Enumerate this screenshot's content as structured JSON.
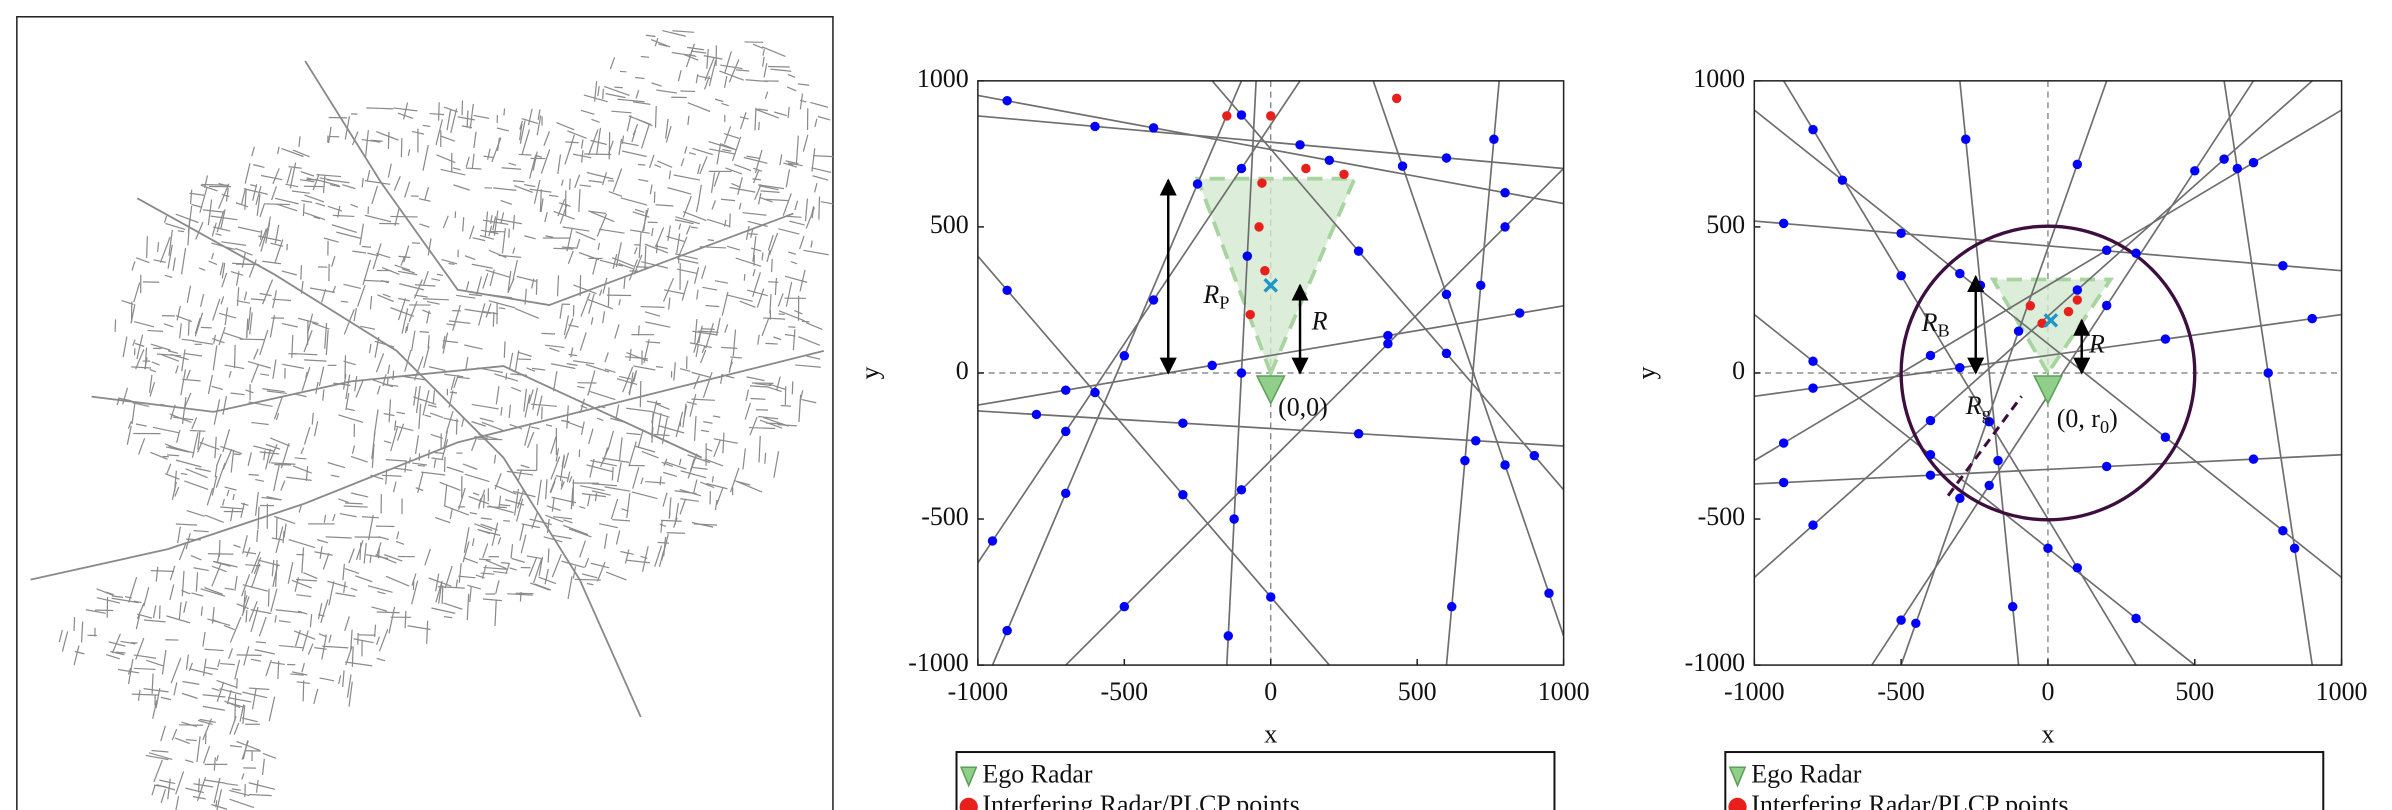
{
  "chart_data": [
    {
      "type": "scatter",
      "xlabel": "x",
      "ylabel": "y",
      "xlim": [
        -1000,
        1000
      ],
      "ylim": [
        -1000,
        1000
      ],
      "xticks": [
        -1000,
        -500,
        0,
        500,
        1000
      ],
      "yticks": [
        -1000,
        -500,
        0,
        500,
        1000
      ],
      "line_color": "#6e6e6e",
      "lines": [
        {
          "x": [
            -1000,
            1000
          ],
          "y": [
            -130,
            -250
          ]
        },
        {
          "x": [
            -1000,
            1000
          ],
          "y": [
            -110,
            230
          ]
        },
        {
          "x": [
            -1000,
            1000
          ],
          "y": [
            950,
            580
          ]
        },
        {
          "x": [
            -1000,
            1000
          ],
          "y": [
            880,
            700
          ]
        },
        {
          "x": [
            -950,
            -100
          ],
          "y": [
            -1000,
            1000
          ]
        },
        {
          "x": [
            -1000,
            100
          ],
          "y": [
            -650,
            1000
          ]
        },
        {
          "x": [
            -700,
            1000
          ],
          "y": [
            -1000,
            700
          ]
        },
        {
          "x": [
            -1000,
            200
          ],
          "y": [
            400,
            -1000
          ]
        },
        {
          "x": [
            -200,
            1000
          ],
          "y": [
            1000,
            -400
          ]
        },
        {
          "x": [
            600,
            780
          ],
          "y": [
            -1000,
            1000
          ]
        },
        {
          "x": [
            -150,
            -50
          ],
          "y": [
            -1000,
            1000
          ]
        },
        {
          "x": [
            350,
            1000
          ],
          "y": [
            1000,
            -900
          ]
        }
      ],
      "sector": {
        "x": [
          0,
          -250,
          286
        ],
        "y": [
          0,
          665,
          665
        ],
        "color": "#d3ead0"
      },
      "series": [
        {
          "color": "#0000ff",
          "x": [
            -800,
            -300,
            300,
            700,
            -700,
            -200,
            400,
            850,
            -900,
            -400,
            200,
            800,
            -600,
            100,
            600,
            -900,
            -700,
            -500,
            -250,
            -950,
            -700,
            -400,
            -100,
            -500,
            -100,
            400,
            800,
            -900,
            -600,
            -300,
            0,
            -100,
            300,
            600,
            900,
            618,
            663,
            717,
            762,
            -145,
            -125,
            -100,
            -80,
            450,
            600,
            800,
            950
          ],
          "y": [
            -142,
            -172,
            -208,
            -232,
            -59,
            26,
            128,
            205,
            932,
            839,
            728,
            617,
            844,
            781,
            736,
            -882,
            -412,
            59,
            647,
            -575,
            -200,
            250,
            700,
            -800,
            -400,
            100,
            500,
            283,
            -67,
            -417,
            -767,
            883,
            417,
            67,
            -283,
            -800,
            -300,
            300,
            800,
            -900,
            -500,
            0,
            400,
            708,
            269,
            -315,
            -754
          ]
        },
        {
          "name": "Interfering Radar/PLCP points",
          "color": "#e8201c",
          "x": [
            -150,
            0,
            430,
            -30,
            -40,
            -20,
            -70,
            250,
            120
          ],
          "y": [
            880,
            880,
            940,
            650,
            500,
            350,
            200,
            680,
            700
          ]
        }
      ],
      "ego": {
        "name": "Ego Radar",
        "x": 0,
        "y": 0,
        "color": "#8fcf8a"
      },
      "target": {
        "x": 0,
        "y": 300,
        "color": "#1e96c8"
      },
      "annotations": [
        {
          "text": "R",
          "sub": "P"
        },
        {
          "text": "R"
        },
        {
          "text": "(0,0)"
        }
      ]
    },
    {
      "type": "scatter",
      "xlabel": "x",
      "ylabel": "y",
      "xlim": [
        -1000,
        1000
      ],
      "ylim": [
        -1000,
        1000
      ],
      "xticks": [
        -1000,
        -500,
        0,
        500,
        1000
      ],
      "yticks": [
        -1000,
        -500,
        0,
        500,
        1000
      ],
      "line_color": "#6e6e6e",
      "lines": [
        {
          "x": [
            -1000,
            1000
          ],
          "y": [
            520,
            350
          ]
        },
        {
          "x": [
            -1000,
            1000
          ],
          "y": [
            -380,
            -280
          ]
        },
        {
          "x": [
            -1000,
            1000
          ],
          "y": [
            -80,
            200
          ]
        },
        {
          "x": [
            -1000,
            900
          ],
          "y": [
            -700,
            1000
          ]
        },
        {
          "x": [
            -900,
            300
          ],
          "y": [
            1000,
            -1000
          ]
        },
        {
          "x": [
            -600,
            700
          ],
          "y": [
            -1000,
            1000
          ]
        },
        {
          "x": [
            -300,
            -100
          ],
          "y": [
            1000,
            -1000
          ]
        },
        {
          "x": [
            -1000,
            500
          ],
          "y": [
            200,
            -1000
          ]
        },
        {
          "x": [
            200,
            -500
          ],
          "y": [
            1000,
            -1000
          ]
        },
        {
          "x": [
            -1000,
            1000
          ],
          "y": [
            900,
            -700
          ]
        },
        {
          "x": [
            600,
            900
          ],
          "y": [
            1000,
            -1000
          ]
        },
        {
          "x": [
            -1000,
            1000
          ],
          "y": [
            -300,
            900
          ]
        }
      ],
      "sector": {
        "x": [
          0,
          -187,
          213
        ],
        "y": [
          0,
          320,
          320
        ],
        "color": "#d3ead0"
      },
      "circle": {
        "x": 0,
        "y": 0,
        "r": 500,
        "color": "#3c0f3f"
      },
      "series": [
        {
          "color": "#0000ff",
          "x": [
            -900,
            -500,
            300,
            800,
            -900,
            -400,
            200,
            700,
            -800,
            -300,
            400,
            900,
            -800,
            -400,
            100,
            600,
            -800,
            -500,
            -200,
            100,
            -500,
            -200,
            200,
            500,
            -280,
            -230,
            -170,
            -120,
            -800,
            -400,
            0,
            300,
            100,
            -100,
            -300,
            -450,
            -700,
            -300,
            400,
            800,
            645,
            750,
            840,
            -900,
            -400,
            200,
            700
          ],
          "y": [
            512,
            478,
            410,
            367,
            -375,
            -350,
            -320,
            -295,
            -52,
            18,
            116,
            186,
            -521,
            -163,
            284,
            732,
            833,
            333,
            -167,
            -667,
            -846,
            -385,
            231,
            692,
            800,
            300,
            -300,
            -800,
            40,
            -280,
            -600,
            -840,
            714,
            143,
            -429,
            -857,
            660,
            340,
            -220,
            -540,
            700,
            0,
            -600,
            -240,
            60,
            420,
            720
          ]
        },
        {
          "name": "Interfering Radar/PLCP points",
          "color": "#e8201c",
          "x": [
            -60,
            70,
            -20,
            100
          ],
          "y": [
            230,
            210,
            170,
            250
          ]
        }
      ],
      "ego": {
        "name": "Ego Radar",
        "x": 0,
        "y": 0,
        "color": "#8fcf8a"
      },
      "target": {
        "x": 10,
        "y": 180,
        "color": "#1e96c8"
      },
      "annotations": [
        {
          "text": "R",
          "sub": "B"
        },
        {
          "text": "R"
        },
        {
          "text": "R",
          "sub": "g"
        },
        {
          "text": "(0, r",
          "sub": "0",
          "after": ")"
        }
      ]
    }
  ]
}
